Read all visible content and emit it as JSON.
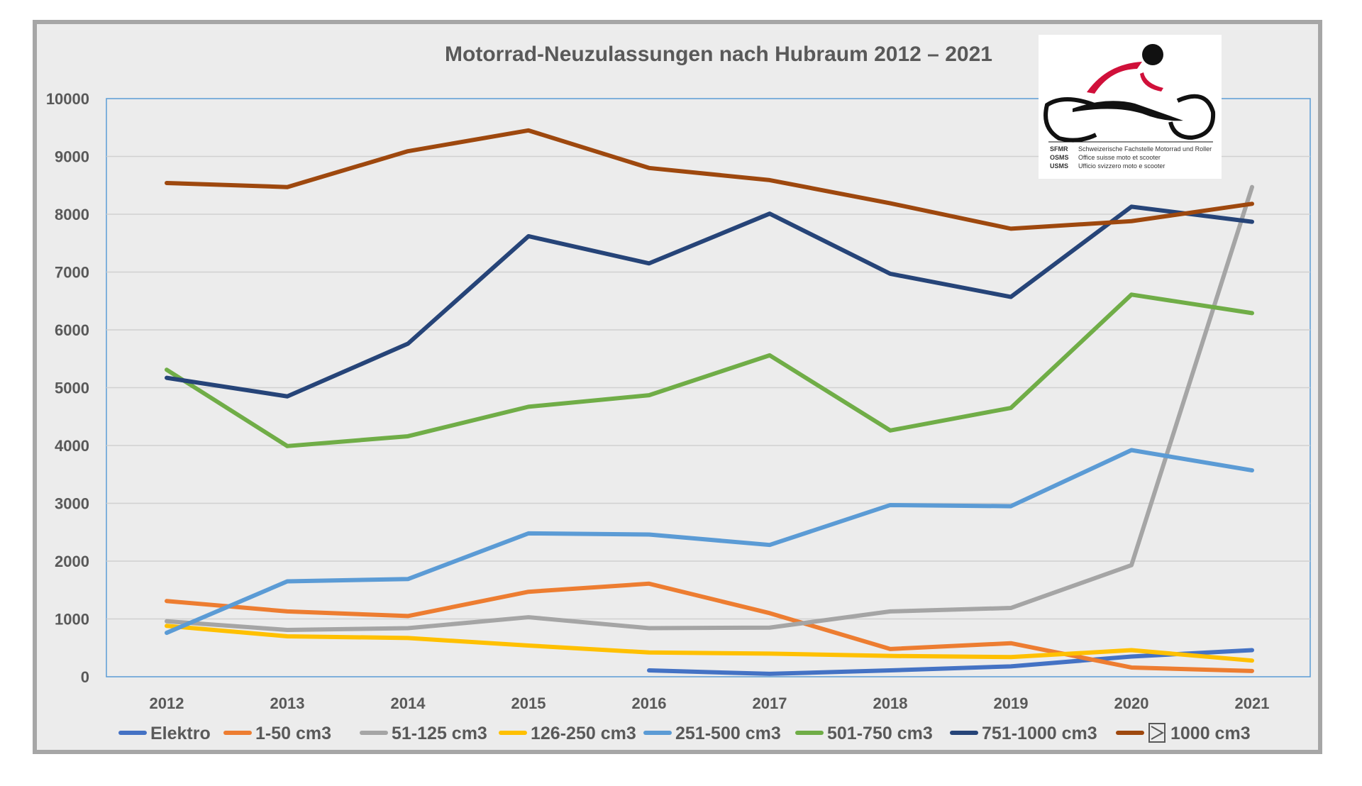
{
  "logo": {
    "lines": [
      {
        "abbr": "SFMR",
        "text": "Schweizerische Fachstelle Motorrad und Roller"
      },
      {
        "abbr": "OSMS",
        "text": "Office suisse moto et scooter"
      },
      {
        "abbr": "USMS",
        "text": "Ufficio svizzero moto e scooter"
      }
    ]
  },
  "chart_data": {
    "type": "line",
    "title": "Motorrad-Neuzulassungen nach Hubraum 2012 – 2021",
    "xlabel": "",
    "ylabel": "",
    "categories": [
      "2012",
      "2013",
      "2014",
      "2015",
      "2016",
      "2017",
      "2018",
      "2019",
      "2020",
      "2021"
    ],
    "ylim": [
      0,
      10000
    ],
    "yticks": [
      "0",
      "1000",
      "2000",
      "3000",
      "4000",
      "5000",
      "6000",
      "7000",
      "8000",
      "9000",
      "10000"
    ],
    "grid": "horizontal",
    "legend_position": "bottom",
    "series": [
      {
        "name": "Elektro",
        "color": "#4472c4",
        "values": [
          null,
          null,
          null,
          null,
          110,
          50,
          110,
          180,
          350,
          460
        ]
      },
      {
        "name": "1-50 cm3",
        "color": "#ed7d31",
        "values": [
          1310,
          1130,
          1050,
          1470,
          1610,
          1100,
          480,
          580,
          160,
          100
        ]
      },
      {
        "name": "51-125 cm3",
        "color": "#a5a5a5",
        "values": [
          960,
          810,
          840,
          1030,
          840,
          850,
          1130,
          1190,
          1930,
          8470
        ]
      },
      {
        "name": "126-250 cm3",
        "color": "#ffc000",
        "values": [
          880,
          700,
          670,
          540,
          420,
          400,
          360,
          340,
          460,
          280
        ]
      },
      {
        "name": "251-500 cm3",
        "color": "#5b9bd5",
        "values": [
          760,
          1650,
          1690,
          2480,
          2460,
          2280,
          2970,
          2950,
          3920,
          3570
        ]
      },
      {
        "name": "501-750 cm3",
        "color": "#70ad47",
        "values": [
          5310,
          3990,
          4160,
          4670,
          4870,
          5560,
          4260,
          4650,
          6610,
          6290
        ]
      },
      {
        "name": "751-1000 cm3",
        "color": "#264478",
        "values": [
          5170,
          4850,
          5760,
          7620,
          7150,
          8010,
          6970,
          6570,
          8130,
          7870
        ]
      },
      {
        "name": "1000 cm3",
        "color": "#9e480e",
        "values": [
          8540,
          8470,
          9090,
          9450,
          8800,
          8590,
          8190,
          7750,
          7880,
          8180
        ]
      }
    ]
  }
}
